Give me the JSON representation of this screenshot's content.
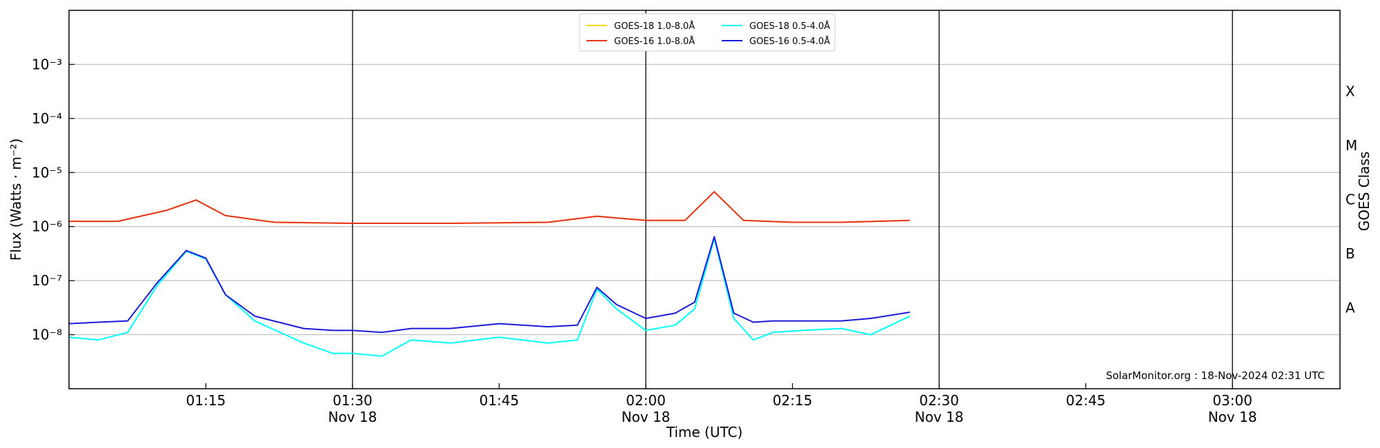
{
  "chart_data": {
    "type": "line",
    "xlabel": "Time (UTC)",
    "ylabel": "Flux (Watts · m⁻²)",
    "ylabel2": "GOES Class",
    "credit": "SolarMonitor.org : 18-Nov-2024 02:31 UTC",
    "y_scale": "log",
    "ylim": [
      1e-09,
      0.01
    ],
    "xlim": [
      "2024-11-18 01:01",
      "2024-11-18 03:11"
    ],
    "grid": "horizontal at decades",
    "legend_position": "top-center",
    "y_ticks": [
      {
        "value": 1e-08,
        "label": "10⁻⁸"
      },
      {
        "value": 1e-07,
        "label": "10⁻⁷"
      },
      {
        "value": 1e-06,
        "label": "10⁻⁶"
      },
      {
        "value": 1e-05,
        "label": "10⁻⁵"
      },
      {
        "value": 0.0001,
        "label": "10⁻⁴"
      },
      {
        "value": 0.001,
        "label": "10⁻³"
      }
    ],
    "x_ticks": [
      {
        "time": "01:15",
        "label": "01:15",
        "sublabel": ""
      },
      {
        "time": "01:30",
        "label": "01:30",
        "sublabel": "Nov 18"
      },
      {
        "time": "01:45",
        "label": "01:45",
        "sublabel": ""
      },
      {
        "time": "02:00",
        "label": "02:00",
        "sublabel": "Nov 18"
      },
      {
        "time": "02:15",
        "label": "02:15",
        "sublabel": ""
      },
      {
        "time": "02:30",
        "label": "02:30",
        "sublabel": "Nov 18"
      },
      {
        "time": "02:45",
        "label": "02:45",
        "sublabel": ""
      },
      {
        "time": "03:00",
        "label": "03:00",
        "sublabel": "Nov 18"
      }
    ],
    "vertical_lines": [
      "01:30",
      "02:00",
      "02:30",
      "03:00"
    ],
    "goes_classes": [
      {
        "label": "X",
        "value": 0.000316
      },
      {
        "label": "M",
        "value": 3.16e-05
      },
      {
        "label": "C",
        "value": 3.16e-06
      },
      {
        "label": "B",
        "value": 3.16e-07
      },
      {
        "label": "A",
        "value": 3.16e-08
      }
    ],
    "series": [
      {
        "name": "GOES-18 1.0-8.0Å",
        "color": "#FFD700",
        "x": [
          "01:01",
          "01:06",
          "01:11",
          "01:14",
          "01:17",
          "01:22",
          "01:30",
          "01:40",
          "01:50",
          "01:55",
          "02:00",
          "02:04",
          "02:07",
          "02:10",
          "02:15",
          "02:20",
          "02:27"
        ],
        "values": [
          1.25e-06,
          1.25e-06,
          2e-06,
          3.1e-06,
          1.6e-06,
          1.2e-06,
          1.15e-06,
          1.15e-06,
          1.2e-06,
          1.55e-06,
          1.3e-06,
          1.3e-06,
          4.4e-06,
          1.3e-06,
          1.2e-06,
          1.2e-06,
          1.3e-06
        ]
      },
      {
        "name": "GOES-16 1.0-8.0Å",
        "color": "#E8311A",
        "x": [
          "01:01",
          "01:06",
          "01:11",
          "01:14",
          "01:17",
          "01:22",
          "01:30",
          "01:40",
          "01:50",
          "01:55",
          "02:00",
          "02:04",
          "02:07",
          "02:10",
          "02:15",
          "02:20",
          "02:27"
        ],
        "values": [
          1.25e-06,
          1.25e-06,
          2e-06,
          3.1e-06,
          1.6e-06,
          1.2e-06,
          1.15e-06,
          1.15e-06,
          1.2e-06,
          1.55e-06,
          1.3e-06,
          1.3e-06,
          4.4e-06,
          1.3e-06,
          1.2e-06,
          1.2e-06,
          1.3e-06
        ]
      },
      {
        "name": "GOES-18 0.5-4.0Å",
        "color": "#00FFFF",
        "x": [
          "01:01",
          "01:04",
          "01:07",
          "01:10",
          "01:13",
          "01:15",
          "01:17",
          "01:20",
          "01:25",
          "01:28",
          "01:30",
          "01:33",
          "01:36",
          "01:40",
          "01:45",
          "01:50",
          "01:53",
          "01:55",
          "01:57",
          "02:00",
          "02:03",
          "02:05",
          "02:07",
          "02:09",
          "02:11",
          "02:13",
          "02:16",
          "02:20",
          "02:23",
          "02:27"
        ],
        "values": [
          9e-09,
          8e-09,
          1.1e-08,
          8e-08,
          3.5e-07,
          2.5e-07,
          5.5e-08,
          1.8e-08,
          7e-09,
          4.5e-09,
          4.5e-09,
          4e-09,
          8e-09,
          7e-09,
          9e-09,
          7e-09,
          8e-09,
          7e-08,
          3e-08,
          1.2e-08,
          1.5e-08,
          3e-08,
          6e-07,
          2e-08,
          8e-09,
          1.1e-08,
          1.2e-08,
          1.3e-08,
          1e-08,
          2.2e-08
        ]
      },
      {
        "name": "GOES-16 0.5-4.0Å",
        "color": "#1A1ADC",
        "x": [
          "01:01",
          "01:04",
          "01:07",
          "01:10",
          "01:13",
          "01:15",
          "01:17",
          "01:20",
          "01:25",
          "01:28",
          "01:30",
          "01:33",
          "01:36",
          "01:40",
          "01:45",
          "01:50",
          "01:53",
          "01:55",
          "01:57",
          "02:00",
          "02:03",
          "02:05",
          "02:07",
          "02:09",
          "02:11",
          "02:13",
          "02:16",
          "02:20",
          "02:23",
          "02:27"
        ],
        "values": [
          1.6e-08,
          1.7e-08,
          1.8e-08,
          9e-08,
          3.6e-07,
          2.6e-07,
          5.5e-08,
          2.2e-08,
          1.3e-08,
          1.2e-08,
          1.2e-08,
          1.1e-08,
          1.3e-08,
          1.3e-08,
          1.6e-08,
          1.4e-08,
          1.5e-08,
          7.5e-08,
          3.6e-08,
          2e-08,
          2.5e-08,
          4e-08,
          6.5e-07,
          2.5e-08,
          1.7e-08,
          1.8e-08,
          1.8e-08,
          1.8e-08,
          2e-08,
          2.6e-08
        ]
      }
    ]
  }
}
